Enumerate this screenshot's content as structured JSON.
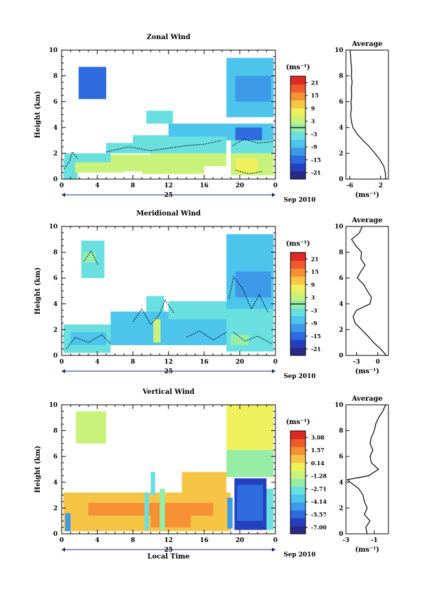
{
  "x_unit_label": "Sep 2010",
  "x_day_label": "25",
  "x_axis_label": "Local Time",
  "colormap": [
    "#2a2a86",
    "#2440bf",
    "#2d6bde",
    "#3c9ae8",
    "#4cc4ec",
    "#6adfe0",
    "#96eda6",
    "#c9f27a",
    "#eef05c",
    "#f7c545",
    "#f59034",
    "#ee5a2a",
    "#de2a24"
  ],
  "chart_data": [
    {
      "type": "heatmap",
      "title": "Zonal Wind",
      "ylabel": "Height (km)",
      "xlim": [
        0,
        24
      ],
      "ylim": [
        0,
        10
      ],
      "x_ticks": [
        "0",
        "4",
        "8",
        "12",
        "16",
        "20",
        "0"
      ],
      "y_ticks": [
        "0",
        "2",
        "4",
        "6",
        "8",
        "10"
      ],
      "colorbar": {
        "unit": "(ms⁻¹)",
        "range": [
          -24,
          24
        ],
        "ticks": [
          "21",
          "15",
          "9",
          "3",
          "-3",
          "-9",
          "-15",
          "-21"
        ],
        "zero_line": 0
      },
      "profile": {
        "title": "Average",
        "xlabel": "(ms⁻¹)",
        "x_ticks": [
          "-6",
          "2"
        ],
        "x_tick_values": [
          -6,
          2
        ],
        "xlim": [
          -7,
          4
        ],
        "heights": [
          0.0,
          0.5,
          1.0,
          1.5,
          2.0,
          2.5,
          3.0,
          3.5,
          4.0,
          4.5,
          5.0,
          5.5,
          6.0,
          6.5,
          7.0,
          7.5,
          8.0,
          8.5,
          9.0,
          9.5,
          10.0
        ],
        "values": [
          3.3,
          3.2,
          2.8,
          1.8,
          0.5,
          -0.9,
          -2.6,
          -4.1,
          -5.2,
          -5.6,
          -5.8,
          -5.6,
          -5.7,
          -5.5,
          -5.6,
          -5.4,
          -5.6,
          -5.5,
          -5.7,
          -5.8,
          -5.9
        ]
      },
      "regions": [
        {
          "x": [
            0.2,
            1.8
          ],
          "y": [
            0.0,
            1.5
          ],
          "v": -2
        },
        {
          "x": [
            0.3,
            5.5
          ],
          "y": [
            1.2,
            2.0
          ],
          "v": -2
        },
        {
          "x": [
            5.5,
            10.0
          ],
          "y": [
            0.6,
            1.9
          ],
          "v": 2
        },
        {
          "x": [
            10.0,
            18.5
          ],
          "y": [
            1.0,
            2.0
          ],
          "v": 3
        },
        {
          "x": [
            1.5,
            7.0
          ],
          "y": [
            0.5,
            1.3
          ],
          "v": 4
        },
        {
          "x": [
            9.0,
            16.0
          ],
          "y": [
            0.4,
            1.1
          ],
          "v": 5
        },
        {
          "x": [
            5.0,
            18.5
          ],
          "y": [
            2.0,
            2.8
          ],
          "v": -4
        },
        {
          "x": [
            8.0,
            18.5
          ],
          "y": [
            2.7,
            3.4
          ],
          "v": -4
        },
        {
          "x": [
            12.0,
            18.5
          ],
          "y": [
            3.3,
            4.3
          ],
          "v": -6
        },
        {
          "x": [
            9.5,
            12.5
          ],
          "y": [
            4.3,
            5.3
          ],
          "v": -5
        },
        {
          "x": [
            1.9,
            5.0
          ],
          "y": [
            6.2,
            8.7
          ],
          "v": -13
        },
        {
          "x": [
            18.5,
            23.8
          ],
          "y": [
            4.8,
            9.4
          ],
          "v": -9
        },
        {
          "x": [
            19.5,
            23.5
          ],
          "y": [
            6.0,
            8.0
          ],
          "v": -11
        },
        {
          "x": [
            18.5,
            23.8
          ],
          "y": [
            3.0,
            4.3
          ],
          "v": -9
        },
        {
          "x": [
            19.5,
            22.5
          ],
          "y": [
            3.0,
            4.0
          ],
          "v": -13
        },
        {
          "x": [
            19.0,
            23.8
          ],
          "y": [
            2.0,
            3.0
          ],
          "v": -2
        },
        {
          "x": [
            19.0,
            23.8
          ],
          "y": [
            0.3,
            2.0
          ],
          "v": 4
        },
        {
          "x": [
            19.5,
            22.0
          ],
          "y": [
            0.5,
            1.6
          ],
          "v": 6
        }
      ],
      "contours": [
        [
          [
            0.3,
            0.8
          ],
          [
            0.9,
            1.4
          ],
          [
            1.2,
            2.1
          ],
          [
            1.8,
            1.6
          ]
        ],
        [
          [
            5.0,
            2.1
          ],
          [
            7.5,
            2.5
          ],
          [
            10.0,
            2.2
          ],
          [
            12.0,
            2.4
          ],
          [
            14.0,
            2.6
          ],
          [
            16.0,
            2.7
          ],
          [
            18.0,
            3.0
          ]
        ],
        [
          [
            19.2,
            2.6
          ],
          [
            20.5,
            3.1
          ],
          [
            22.0,
            2.8
          ],
          [
            23.8,
            2.9
          ]
        ],
        [
          [
            19.5,
            0.7
          ],
          [
            21.0,
            0.4
          ],
          [
            22.5,
            0.6
          ]
        ]
      ]
    },
    {
      "type": "heatmap",
      "title": "Meridional Wind",
      "ylabel": "Height (km)",
      "xlim": [
        0,
        24
      ],
      "ylim": [
        0,
        10
      ],
      "x_ticks": [
        "0",
        "4",
        "8",
        "12",
        "16",
        "20",
        "0"
      ],
      "y_ticks": [
        "0",
        "2",
        "4",
        "6",
        "8",
        "10"
      ],
      "colorbar": {
        "unit": "(ms⁻¹)",
        "range": [
          -24,
          24
        ],
        "ticks": [
          "21",
          "15",
          "9",
          "3",
          "-3",
          "-9",
          "-15",
          "-21"
        ],
        "zero_line": 0
      },
      "profile": {
        "title": "Average",
        "xlabel": "(ms⁻¹)",
        "x_ticks": [
          "-3",
          "0"
        ],
        "x_tick_values": [
          -3,
          0
        ],
        "xlim": [
          -4.5,
          1.5
        ],
        "heights": [
          0.0,
          0.5,
          1.0,
          1.5,
          2.0,
          2.5,
          3.0,
          3.5,
          4.0,
          4.5,
          5.0,
          5.5,
          6.0,
          6.5,
          7.0,
          7.5,
          8.0,
          8.5,
          9.0,
          9.5,
          10.0
        ],
        "values": [
          1.2,
          0.4,
          -0.6,
          -1.4,
          -2.3,
          -3.2,
          -3.5,
          -3.0,
          -1.1,
          -0.9,
          -1.5,
          -2.0,
          -2.9,
          -2.4,
          -1.8,
          -2.4,
          -2.3,
          -3.1,
          -3.7,
          -2.6,
          -2.2
        ]
      },
      "regions": [
        {
          "x": [
            0.2,
            5.5
          ],
          "y": [
            0.2,
            2.4
          ],
          "v": -3
        },
        {
          "x": [
            1.0,
            5.0
          ],
          "y": [
            0.8,
            1.8
          ],
          "v": -6
        },
        {
          "x": [
            5.5,
            19.0
          ],
          "y": [
            0.8,
            3.4
          ],
          "v": -6
        },
        {
          "x": [
            8.0,
            14.0
          ],
          "y": [
            1.0,
            3.0
          ],
          "v": -9
        },
        {
          "x": [
            10.3,
            11.1
          ],
          "y": [
            1.0,
            2.8
          ],
          "v": 5
        },
        {
          "x": [
            12.0,
            19.0
          ],
          "y": [
            2.8,
            4.2
          ],
          "v": -4
        },
        {
          "x": [
            9.5,
            11.5
          ],
          "y": [
            3.4,
            4.6
          ],
          "v": -3
        },
        {
          "x": [
            2.2,
            4.8
          ],
          "y": [
            6.0,
            8.9
          ],
          "v": -4
        },
        {
          "x": [
            2.4,
            3.8
          ],
          "y": [
            7.2,
            8.0
          ],
          "v": -1
        },
        {
          "x": [
            18.5,
            23.8
          ],
          "y": [
            3.5,
            9.4
          ],
          "v": -8
        },
        {
          "x": [
            19.5,
            23.5
          ],
          "y": [
            4.5,
            6.5
          ],
          "v": -11
        },
        {
          "x": [
            18.5,
            23.8
          ],
          "y": [
            2.0,
            3.6
          ],
          "v": -2
        },
        {
          "x": [
            18.5,
            23.8
          ],
          "y": [
            0.3,
            2.0
          ],
          "v": -4
        },
        {
          "x": [
            19.0,
            21.0
          ],
          "y": [
            0.8,
            1.6
          ],
          "v": -1
        }
      ],
      "contours": [
        [
          [
            0.5,
            0.5
          ],
          [
            1.5,
            1.4
          ],
          [
            3.0,
            1.0
          ],
          [
            4.5,
            1.6
          ],
          [
            5.5,
            0.9
          ]
        ],
        [
          [
            8.0,
            2.6
          ],
          [
            9.0,
            3.6
          ],
          [
            10.0,
            2.4
          ],
          [
            11.0,
            3.2
          ],
          [
            11.6,
            4.3
          ],
          [
            12.6,
            3.3
          ]
        ],
        [
          [
            14.0,
            1.4
          ],
          [
            15.5,
            1.9
          ],
          [
            17.0,
            1.2
          ],
          [
            18.5,
            1.8
          ]
        ],
        [
          [
            18.8,
            4.4
          ],
          [
            19.3,
            6.1
          ],
          [
            20.3,
            5.2
          ],
          [
            21.3,
            3.6
          ],
          [
            22.2,
            4.7
          ],
          [
            23.2,
            3.3
          ]
        ],
        [
          [
            19.3,
            1.8
          ],
          [
            20.6,
            1.1
          ],
          [
            22.0,
            1.5
          ],
          [
            23.6,
            0.9
          ]
        ],
        [
          [
            2.5,
            7.3
          ],
          [
            3.3,
            8.1
          ],
          [
            4.1,
            7.0
          ]
        ]
      ]
    },
    {
      "type": "heatmap",
      "title": "Vertical Wind",
      "ylabel": "Height (km)",
      "xlabel": "Local Time",
      "xlim": [
        0,
        24
      ],
      "ylim": [
        0,
        10
      ],
      "x_ticks": [
        "0",
        "4",
        "8",
        "12",
        "16",
        "20",
        "0"
      ],
      "y_ticks": [
        "0",
        "2",
        "4",
        "6",
        "8",
        "10"
      ],
      "colorbar": {
        "unit": "(ms⁻¹)",
        "range": [
          -8.5,
          4.0
        ],
        "ticks": [
          "3.08",
          "1.57",
          "0.14",
          "-1.28",
          "-2.71",
          "-4.14",
          "-5.57",
          "-7.00"
        ]
      },
      "profile": {
        "title": "Average",
        "xlabel": "(ms⁻¹)",
        "x_ticks": [
          "-3",
          "-1"
        ],
        "x_tick_values": [
          -3,
          -1
        ],
        "xlim": [
          -3,
          0
        ],
        "heights": [
          0.0,
          0.5,
          1.0,
          1.5,
          2.0,
          2.5,
          3.0,
          3.5,
          4.0,
          4.2,
          4.5,
          5.0,
          5.5,
          6.0,
          6.5,
          7.0,
          7.5,
          8.0,
          8.5,
          9.0,
          9.5,
          10.0
        ],
        "values": [
          -1.5,
          -1.6,
          -1.3,
          -1.7,
          -1.5,
          -1.7,
          -1.8,
          -2.1,
          -2.7,
          -2.9,
          -1.4,
          -0.7,
          -1.2,
          -1.3,
          -1.1,
          -1.3,
          -1.2,
          -1.0,
          -0.9,
          -0.7,
          -0.4,
          -0.2
        ]
      },
      "regions": [
        {
          "x": [
            0.2,
            19.0
          ],
          "y": [
            0.2,
            3.2
          ],
          "v": 0.8
        },
        {
          "x": [
            3.0,
            17.0
          ],
          "y": [
            1.4,
            2.4
          ],
          "v": 1.3
        },
        {
          "x": [
            10.0,
            14.5
          ],
          "y": [
            0.5,
            1.6
          ],
          "v": 1.6
        },
        {
          "x": [
            0.4,
            1.0
          ],
          "y": [
            0.2,
            1.6
          ],
          "v": -5.0
        },
        {
          "x": [
            9.3,
            9.8
          ],
          "y": [
            0.3,
            3.2
          ],
          "v": -3.0
        },
        {
          "x": [
            11.0,
            11.6
          ],
          "y": [
            0.3,
            3.5
          ],
          "v": -2.5
        },
        {
          "x": [
            10.0,
            10.5
          ],
          "y": [
            3.0,
            4.8
          ],
          "v": -3.5
        },
        {
          "x": [
            13.5,
            18.5
          ],
          "y": [
            3.0,
            4.8
          ],
          "v": 0.9
        },
        {
          "x": [
            18.6,
            19.2
          ],
          "y": [
            0.4,
            2.8
          ],
          "v": -5.0
        },
        {
          "x": [
            1.6,
            5.0
          ],
          "y": [
            7.0,
            9.5
          ],
          "v": -1.0
        },
        {
          "x": [
            18.5,
            23.8
          ],
          "y": [
            6.5,
            10.0
          ],
          "v": -0.8
        },
        {
          "x": [
            18.5,
            23.8
          ],
          "y": [
            4.4,
            6.5
          ],
          "v": -2.2
        },
        {
          "x": [
            19.4,
            23.0
          ],
          "y": [
            0.3,
            4.3
          ],
          "v": -7.0
        },
        {
          "x": [
            19.7,
            22.6
          ],
          "y": [
            1.0,
            3.8
          ],
          "v": -6.3
        },
        {
          "x": [
            23.0,
            23.8
          ],
          "y": [
            0.3,
            3.5
          ],
          "v": -3.0
        }
      ],
      "contours": []
    }
  ]
}
